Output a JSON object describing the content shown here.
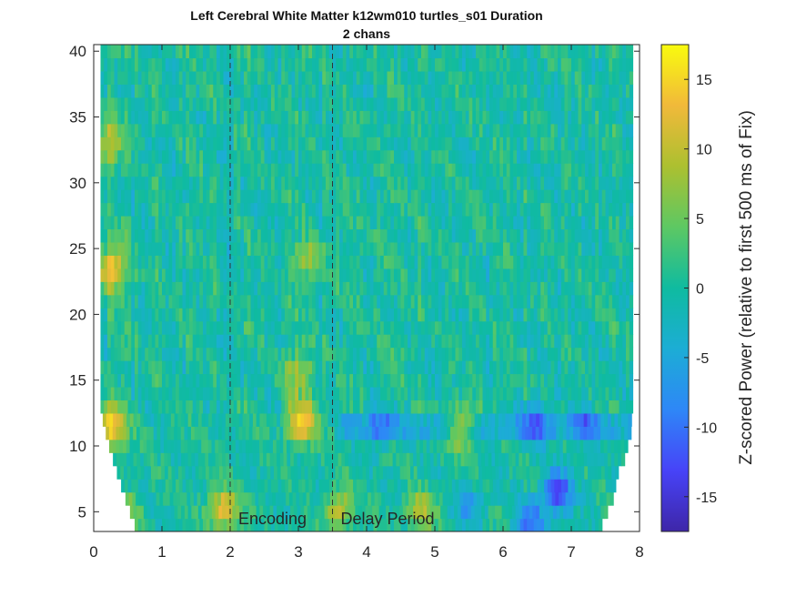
{
  "chart_data": {
    "type": "heatmap",
    "title": "Left Cerebral White Matter k12wm010 turtles_s01 Duration",
    "subtitle": "2 chans",
    "xlabel": "",
    "ylabel": "",
    "xlim": [
      0,
      8
    ],
    "ylim": [
      3.5,
      40.5
    ],
    "x_ticks": [
      "0",
      "1",
      "2",
      "3",
      "4",
      "5",
      "6",
      "7",
      "8"
    ],
    "y_ticks": [
      "5",
      "10",
      "15",
      "20",
      "25",
      "30",
      "35",
      "40"
    ],
    "colorbar": {
      "label": "Z-scored Power (relative to first 500 ms of Fix)",
      "range": [
        -17.5,
        17.5
      ],
      "ticks": [
        "15",
        "10",
        "5",
        "0",
        "-5",
        "-10",
        "-15"
      ],
      "colormap": [
        "#3e26a8",
        "#4743f8",
        "#2e87f7",
        "#1cadd5",
        "#0fbba0",
        "#5dc863",
        "#acc030",
        "#f1b93a",
        "#f9fb0e"
      ]
    },
    "events": [
      {
        "time": 2.0,
        "label": "Encoding"
      },
      {
        "time": 3.5,
        "label": "Delay Period"
      }
    ],
    "frequencies": [
      4,
      5,
      6,
      7,
      8,
      9,
      10,
      11,
      12,
      13,
      14,
      15,
      16,
      17,
      18,
      19,
      20,
      21,
      22,
      23,
      24,
      25,
      26,
      27,
      28,
      29,
      30,
      31,
      32,
      33,
      34,
      35,
      36,
      37,
      38,
      39,
      40
    ],
    "time_range": [
      0.1,
      7.9
    ],
    "hotspots": [
      {
        "t": 0.25,
        "f": 11.5,
        "z": 15
      },
      {
        "t": 0.27,
        "f": 23.5,
        "z": 14
      },
      {
        "t": 0.2,
        "f": 33,
        "z": 9
      },
      {
        "t": 3.05,
        "f": 11.8,
        "z": 14
      },
      {
        "t": 3.0,
        "f": 15.5,
        "z": 8
      },
      {
        "t": 3.1,
        "f": 24,
        "z": 7
      },
      {
        "t": 1.9,
        "f": 5.2,
        "z": 13
      },
      {
        "t": 3.6,
        "f": 5.2,
        "z": 10
      },
      {
        "t": 4.8,
        "f": 5.0,
        "z": 9
      },
      {
        "t": 5.4,
        "f": 11.5,
        "z": 11
      },
      {
        "t": 0.5,
        "f": 5.0,
        "z": 6
      }
    ],
    "coldspots": [
      {
        "t": 6.8,
        "f": 6.5,
        "z": -13
      },
      {
        "t": 6.4,
        "f": 4.2,
        "z": -10
      },
      {
        "t": 6.5,
        "f": 11.8,
        "z": -8
      },
      {
        "t": 4.2,
        "f": 11.8,
        "z": -7
      },
      {
        "t": 7.2,
        "f": 11.5,
        "z": -7
      },
      {
        "t": 5.5,
        "f": 5.5,
        "z": -6
      }
    ]
  }
}
